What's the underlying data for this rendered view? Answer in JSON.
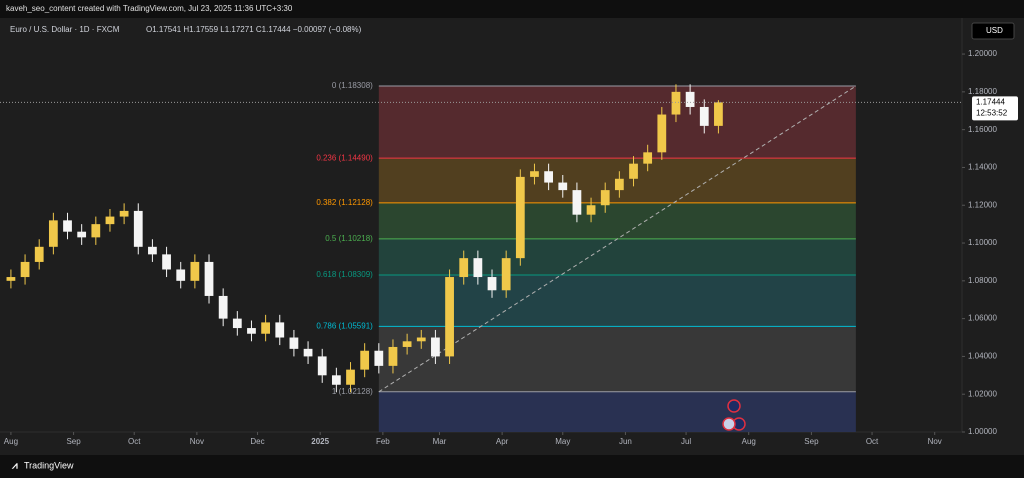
{
  "header": "kaveh_seo_content created with TradingView.com, Jul 23, 2025 11:36 UTC+3:30",
  "footer": "TradingView",
  "chart_data": {
    "type": "candlestick",
    "symbol": "Euro / U.S. Dollar · 1D · FXCM",
    "ohlc_legend": "O1.17541 H1.17559 L1.17271 C1.17444 −0.00097 (−0.08%)",
    "currency": "USD",
    "last_price": {
      "value": 1.17444,
      "label": "1.17444"
    },
    "countdown": "12:53:52",
    "up_color": "#f0c84a",
    "down_color": "#f5f5f5",
    "x": [
      0,
      7,
      14,
      21,
      28,
      35,
      42,
      49,
      56,
      63,
      70,
      77,
      84,
      91,
      98,
      105,
      112,
      119,
      126,
      133,
      140,
      147,
      154,
      161,
      168,
      175,
      182,
      189,
      196,
      203,
      210,
      217,
      224,
      231,
      238,
      245,
      252,
      259,
      266,
      273,
      280,
      287,
      294,
      301,
      308,
      315,
      322,
      329,
      336,
      343,
      350
    ],
    "open": [
      1.08,
      1.082,
      1.09,
      1.098,
      1.112,
      1.106,
      1.103,
      1.11,
      1.114,
      1.117,
      1.098,
      1.094,
      1.086,
      1.08,
      1.09,
      1.072,
      1.06,
      1.055,
      1.052,
      1.058,
      1.05,
      1.044,
      1.04,
      1.03,
      1.025,
      1.033,
      1.043,
      1.035,
      1.045,
      1.048,
      1.05,
      1.04,
      1.082,
      1.092,
      1.082,
      1.075,
      1.092,
      1.135,
      1.138,
      1.132,
      1.128,
      1.115,
      1.12,
      1.128,
      1.134,
      1.142,
      1.148,
      1.168,
      1.18,
      1.172,
      1.162
    ],
    "high": [
      1.086,
      1.094,
      1.102,
      1.116,
      1.116,
      1.11,
      1.114,
      1.118,
      1.121,
      1.121,
      1.102,
      1.098,
      1.09,
      1.094,
      1.094,
      1.076,
      1.064,
      1.059,
      1.062,
      1.062,
      1.054,
      1.048,
      1.044,
      1.034,
      1.037,
      1.047,
      1.047,
      1.049,
      1.052,
      1.054,
      1.054,
      1.086,
      1.096,
      1.096,
      1.086,
      1.096,
      1.139,
      1.142,
      1.142,
      1.136,
      1.132,
      1.124,
      1.132,
      1.138,
      1.146,
      1.152,
      1.172,
      1.184,
      1.184,
      1.176,
      1.1756
    ],
    "low": [
      1.076,
      1.078,
      1.086,
      1.094,
      1.102,
      1.099,
      1.099,
      1.106,
      1.11,
      1.094,
      1.09,
      1.082,
      1.076,
      1.076,
      1.068,
      1.056,
      1.051,
      1.048,
      1.048,
      1.046,
      1.04,
      1.036,
      1.026,
      1.021,
      1.021,
      1.029,
      1.031,
      1.031,
      1.041,
      1.044,
      1.036,
      1.036,
      1.078,
      1.078,
      1.071,
      1.071,
      1.088,
      1.131,
      1.128,
      1.124,
      1.111,
      1.111,
      1.116,
      1.124,
      1.13,
      1.138,
      1.144,
      1.164,
      1.168,
      1.158,
      1.158
    ],
    "close": [
      1.082,
      1.09,
      1.098,
      1.112,
      1.106,
      1.103,
      1.11,
      1.114,
      1.117,
      1.098,
      1.094,
      1.086,
      1.08,
      1.09,
      1.072,
      1.06,
      1.055,
      1.052,
      1.058,
      1.05,
      1.044,
      1.04,
      1.03,
      1.025,
      1.033,
      1.043,
      1.035,
      1.045,
      1.048,
      1.05,
      1.04,
      1.082,
      1.092,
      1.082,
      1.075,
      1.092,
      1.135,
      1.138,
      1.132,
      1.128,
      1.115,
      1.12,
      1.128,
      1.134,
      1.142,
      1.148,
      1.168,
      1.18,
      1.172,
      1.162,
      1.17444
    ],
    "xlim": [
      -5.4,
      470.5
    ],
    "xticks": [
      {
        "value": 0,
        "label": "Aug"
      },
      {
        "value": 31,
        "label": "Sep"
      },
      {
        "value": 61,
        "label": "Oct"
      },
      {
        "value": 92,
        "label": "Nov"
      },
      {
        "value": 122,
        "label": "Dec"
      },
      {
        "value": 153,
        "label": "2025"
      },
      {
        "value": 184,
        "label": "Feb"
      },
      {
        "value": 212,
        "label": "Mar"
      },
      {
        "value": 243,
        "label": "Apr"
      },
      {
        "value": 273,
        "label": "May"
      },
      {
        "value": 304,
        "label": "Jun"
      },
      {
        "value": 334,
        "label": "Jul"
      },
      {
        "value": 365,
        "label": "Aug"
      },
      {
        "value": 396,
        "label": "Sep"
      },
      {
        "value": 426,
        "label": "Oct"
      },
      {
        "value": 457,
        "label": "Nov"
      }
    ],
    "ylim": [
      1.0,
      1.2085
    ],
    "yticks": [
      {
        "value": 1.0,
        "label": "1.00000"
      },
      {
        "value": 1.02,
        "label": "1.02000"
      },
      {
        "value": 1.04,
        "label": "1.04000"
      },
      {
        "value": 1.06,
        "label": "1.06000"
      },
      {
        "value": 1.08,
        "label": "1.08000"
      },
      {
        "value": 1.1,
        "label": "1.10000"
      },
      {
        "value": 1.12,
        "label": "1.12000"
      },
      {
        "value": 1.14,
        "label": "1.14000"
      },
      {
        "value": 1.16,
        "label": "1.16000"
      },
      {
        "value": 1.18,
        "label": "1.18000"
      },
      {
        "value": 1.2,
        "label": "1.20000"
      }
    ],
    "fib": {
      "start_x": 182,
      "end_x": 418,
      "levels": [
        {
          "price": 1.18308,
          "label": "0 (1.18308)",
          "color": "#9a9ca5",
          "fill": "#5b2b30"
        },
        {
          "price": 1.1449,
          "label": "0.236 (1.14490)",
          "color": "#f23645",
          "fill": "#56431f"
        },
        {
          "price": 1.12128,
          "label": "0.382 (1.12128)",
          "color": "#ff9800",
          "fill": "#2c4a31"
        },
        {
          "price": 1.10218,
          "label": "0.5 (1.10218)",
          "color": "#4caf50",
          "fill": "#22473f"
        },
        {
          "price": 1.08309,
          "label": "0.618 (1.08309)",
          "color": "#089981",
          "fill": "#22474b"
        },
        {
          "price": 1.05591,
          "label": "0.786 (1.05591)",
          "color": "#00bcd4",
          "fill": "#3b3b3b"
        },
        {
          "price": 1.02128,
          "label": "1 (1.02128)",
          "color": "#9a9ca5",
          "fill": "#2a3358"
        }
      ]
    }
  }
}
